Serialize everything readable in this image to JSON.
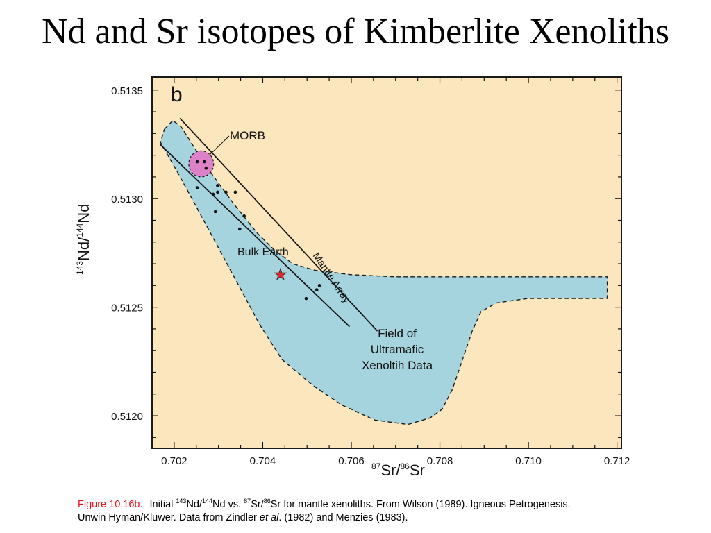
{
  "slide": {
    "title": "Nd and Sr isotopes of Kimberlite Xenoliths"
  },
  "chart_data": {
    "type": "scatter",
    "panel_label": "b",
    "xlabel": "87Sr/86Sr",
    "ylabel": "143Nd/144Nd",
    "xlim": [
      0.7015,
      0.7121
    ],
    "ylim": [
      0.51185,
      0.51356
    ],
    "x_ticks": [
      "0.702",
      "0.704",
      "0.706",
      "0.708",
      "0.710",
      "0.712"
    ],
    "y_ticks": [
      "0.5120",
      "0.5125",
      "0.5130",
      "0.5135"
    ],
    "colors": {
      "background": "#fbe6bd",
      "field_fill": "#a5d3de",
      "morb_fill": "#dd82c8",
      "points": "#111111",
      "bulk_earth_star": "#e8242c"
    },
    "field": {
      "label": [
        "Field of",
        "Ultramafic",
        "Xenoltih Data"
      ],
      "outline": [
        [
          0.70178,
          0.51332
        ],
        [
          0.70197,
          0.51336
        ],
        [
          0.70216,
          0.51333
        ],
        [
          0.70272,
          0.51315
        ],
        [
          0.70333,
          0.51298
        ],
        [
          0.70388,
          0.51284
        ],
        [
          0.70428,
          0.51276
        ],
        [
          0.70468,
          0.5127
        ],
        [
          0.70518,
          0.51267
        ],
        [
          0.70598,
          0.51265
        ],
        [
          0.70698,
          0.51264
        ],
        [
          0.70798,
          0.51264
        ],
        [
          0.70898,
          0.51264
        ],
        [
          0.70998,
          0.51264
        ],
        [
          0.71098,
          0.51264
        ],
        [
          0.71178,
          0.51264
        ],
        [
          0.71178,
          0.51254
        ],
        [
          0.71098,
          0.51254
        ],
        [
          0.70998,
          0.51254
        ],
        [
          0.70928,
          0.51252
        ],
        [
          0.70893,
          0.51248
        ],
        [
          0.70873,
          0.51239
        ],
        [
          0.70853,
          0.51227
        ],
        [
          0.70828,
          0.51212
        ],
        [
          0.70805,
          0.51203
        ],
        [
          0.70778,
          0.51199
        ],
        [
          0.70728,
          0.51196
        ],
        [
          0.70653,
          0.51198
        ],
        [
          0.70578,
          0.51205
        ],
        [
          0.70513,
          0.51214
        ],
        [
          0.70478,
          0.5122
        ],
        [
          0.70443,
          0.51226
        ],
        [
          0.70393,
          0.51242
        ],
        [
          0.70343,
          0.51261
        ],
        [
          0.70293,
          0.5128
        ],
        [
          0.70248,
          0.51297
        ],
        [
          0.70208,
          0.51312
        ],
        [
          0.70183,
          0.51321
        ],
        [
          0.70169,
          0.51326
        ]
      ]
    },
    "morb": {
      "label": "MORB",
      "center": [
        0.70261,
        0.51316
      ],
      "radius": [
        0.00028,
        6e-05
      ]
    },
    "mantle_array": {
      "label": "Mantle Array",
      "lines": [
        [
          [
            0.70213,
            0.51337
          ],
          [
            0.70659,
            0.51239
          ]
        ],
        [
          [
            0.70168,
            0.51325
          ],
          [
            0.70596,
            0.51241
          ]
        ]
      ]
    },
    "bulk_earth": {
      "label": "Bulk Earth",
      "x": 0.7044,
      "y": 0.51265
    },
    "points": [
      [
        0.70252,
        0.51317
      ],
      [
        0.70268,
        0.51317
      ],
      [
        0.70272,
        0.51314
      ],
      [
        0.70252,
        0.51305
      ],
      [
        0.70288,
        0.51302
      ],
      [
        0.70298,
        0.51306
      ],
      [
        0.70298,
        0.51303
      ],
      [
        0.70317,
        0.51303
      ],
      [
        0.70338,
        0.51303
      ],
      [
        0.70293,
        0.51294
      ],
      [
        0.70358,
        0.51292
      ],
      [
        0.70348,
        0.51286
      ],
      [
        0.70528,
        0.5126
      ],
      [
        0.70522,
        0.51258
      ],
      [
        0.70498,
        0.51254
      ]
    ]
  },
  "caption": {
    "fig_label": "Figure 10.16b.",
    "initial": "Initial ",
    "nd143": "143",
    "nd_mid": "Nd/",
    "nd144": "144",
    "nd_end": "Nd vs. ",
    "sr87": "87",
    "sr_mid": "Sr/",
    "sr86": "86",
    "sr_end": "Sr for mantle xenoliths. From Wilson (1989). Igneous Petrogenesis.",
    "line2_start": "Unwin Hyman/Kluwer. Data from Zindler ",
    "et_al": "et al",
    "line2_end": ". (1982) and Menzies (1983)."
  }
}
